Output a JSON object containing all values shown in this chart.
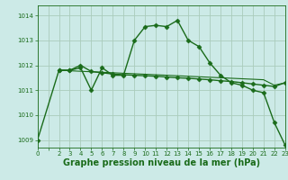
{
  "bg_color": "#cceae7",
  "grid_color": "#aaccbb",
  "line_color": "#1a6b1a",
  "marker_color": "#1a6b1a",
  "xlabel": "Graphe pression niveau de la mer (hPa)",
  "xlabel_fontsize": 7,
  "ytick_labels": [
    "1009",
    "1010",
    "1011",
    "1012",
    "1013",
    "1014"
  ],
  "yticks": [
    1009,
    1010,
    1011,
    1012,
    1013,
    1014
  ],
  "xtick_labels": [
    "0",
    "",
    "2",
    "3",
    "4",
    "5",
    "6",
    "7",
    "8",
    "9",
    "10",
    "11",
    "12",
    "13",
    "14",
    "15",
    "16",
    "17",
    "18",
    "19",
    "20",
    "21",
    "22",
    "23"
  ],
  "xticks": [
    0,
    1,
    2,
    3,
    4,
    5,
    6,
    7,
    8,
    9,
    10,
    11,
    12,
    13,
    14,
    15,
    16,
    17,
    18,
    19,
    20,
    21,
    22,
    23
  ],
  "ylim": [
    1008.7,
    1014.4
  ],
  "xlim": [
    0,
    23
  ],
  "series": [
    {
      "x": [
        0,
        2,
        3,
        4,
        5,
        6,
        7,
        8,
        9,
        10,
        11,
        12,
        13,
        14,
        15,
        16,
        17,
        18,
        19,
        20,
        21,
        22,
        23
      ],
      "y": [
        1009.0,
        1011.8,
        1011.8,
        1011.9,
        1011.0,
        1011.9,
        1011.6,
        1011.6,
        1013.0,
        1013.55,
        1013.6,
        1013.55,
        1013.8,
        1013.0,
        1012.75,
        1012.1,
        1011.6,
        1011.3,
        1011.2,
        1011.0,
        1010.9,
        1009.7,
        1008.8
      ],
      "marker": "D",
      "markersize": 2.5,
      "linewidth": 1.0,
      "linestyle": "-"
    },
    {
      "x": [
        2,
        3,
        4,
        5,
        6,
        7,
        8,
        9,
        10,
        11,
        12,
        13,
        14,
        15,
        16,
        17,
        18,
        19,
        20,
        21,
        22,
        23
      ],
      "y": [
        1011.8,
        1011.8,
        1012.0,
        1011.75,
        1011.7,
        1011.65,
        1011.62,
        1011.6,
        1011.58,
        1011.56,
        1011.53,
        1011.5,
        1011.48,
        1011.45,
        1011.42,
        1011.38,
        1011.35,
        1011.3,
        1011.25,
        1011.2,
        1011.15,
        1011.3
      ],
      "marker": "D",
      "markersize": 2.5,
      "linewidth": 1.0,
      "linestyle": "-"
    },
    {
      "x": [
        2,
        3,
        4,
        5,
        6,
        7,
        8,
        9,
        10,
        11,
        12,
        13,
        14,
        15,
        16,
        17,
        18,
        19,
        20,
        21,
        22,
        23
      ],
      "y": [
        1011.8,
        1011.78,
        1011.76,
        1011.74,
        1011.72,
        1011.7,
        1011.68,
        1011.66,
        1011.64,
        1011.62,
        1011.6,
        1011.58,
        1011.56,
        1011.54,
        1011.52,
        1011.5,
        1011.48,
        1011.46,
        1011.44,
        1011.42,
        1011.2,
        1011.3
      ],
      "marker": null,
      "markersize": 0,
      "linewidth": 0.8,
      "linestyle": "-"
    }
  ]
}
